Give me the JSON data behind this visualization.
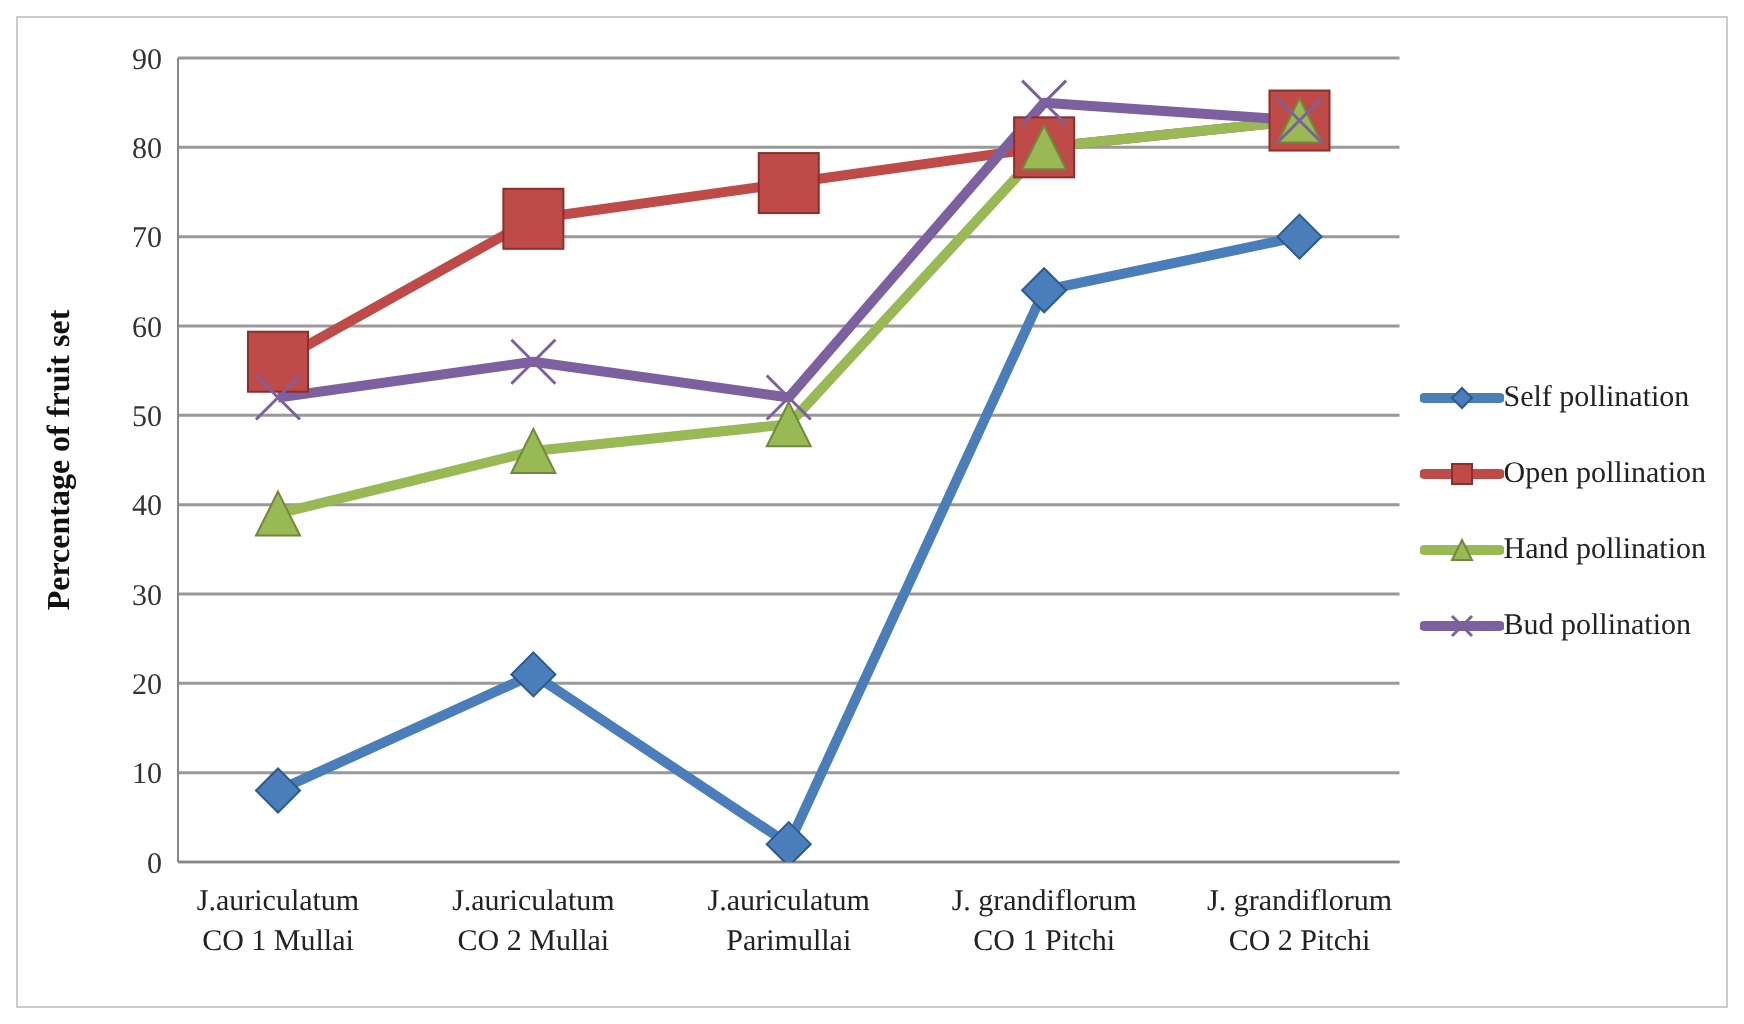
{
  "chart_data": {
    "type": "line",
    "ylabel": "Percentage of fruit set",
    "categories": [
      "J.auriculatum\nCO 1 Mullai",
      "J.auriculatum\nCO 2 Mullai",
      "J.auriculatum\nParimullai",
      "J. grandiflorum\nCO 1 Pitchi",
      "J. grandiflorum\nCO 2 Pitchi"
    ],
    "series": [
      {
        "name": "Self pollination",
        "color": "#4a7ebb",
        "marker": "diamond",
        "values": [
          8,
          21,
          2,
          64,
          70
        ]
      },
      {
        "name": "Open pollination",
        "color": "#be4b48",
        "marker": "square",
        "values": [
          56,
          72,
          76,
          80,
          83
        ]
      },
      {
        "name": "Hand pollination",
        "color": "#98b954",
        "marker": "triangle",
        "values": [
          39,
          46,
          49,
          80,
          83
        ]
      },
      {
        "name": "Bud pollination",
        "color": "#7d60a0",
        "marker": "cross",
        "values": [
          52,
          56,
          52,
          85,
          83
        ]
      }
    ],
    "ylim": [
      0,
      90
    ],
    "yticks": [
      0,
      10,
      20,
      30,
      40,
      50,
      60,
      70,
      80,
      90
    ],
    "grid": "y",
    "legend": "right"
  }
}
